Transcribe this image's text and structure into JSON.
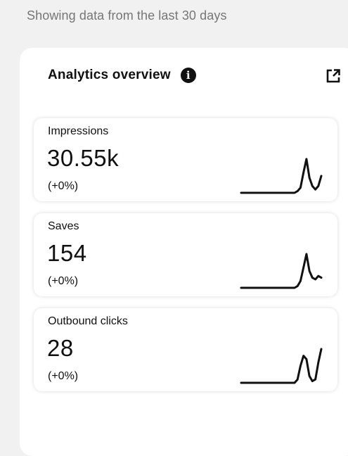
{
  "header": {
    "subtitle": "Showing data from the last 30 days"
  },
  "panel": {
    "title": "Analytics overview",
    "info_icon": "info-icon",
    "external_icon": "external-link-icon"
  },
  "metrics": [
    {
      "label": "Impressions",
      "value": "30.55k",
      "change": "(+0%)",
      "trend": [
        0,
        0,
        0,
        0,
        0,
        0,
        0,
        0,
        0,
        0,
        0,
        0,
        0,
        0,
        0,
        0,
        0,
        0,
        0,
        0.05,
        0.15,
        0.6,
        1,
        0.45,
        0.2,
        0.1,
        0.2,
        0.5
      ]
    },
    {
      "label": "Saves",
      "value": "154",
      "change": "(+0%)",
      "trend": [
        0,
        0,
        0,
        0,
        0,
        0,
        0,
        0,
        0,
        0,
        0,
        0,
        0,
        0,
        0,
        0,
        0,
        0,
        0,
        0.05,
        0.2,
        0.6,
        1,
        0.5,
        0.3,
        0.25,
        0.35,
        0.3
      ]
    },
    {
      "label": "Outbound clicks",
      "value": "28",
      "change": "(+0%)",
      "trend": [
        0,
        0,
        0,
        0,
        0,
        0,
        0,
        0,
        0,
        0,
        0,
        0,
        0,
        0,
        0,
        0,
        0,
        0,
        0,
        0.1,
        0.5,
        0.8,
        0.7,
        0.2,
        0.05,
        0.1,
        0.6,
        1
      ]
    }
  ],
  "colors": {
    "background": "#f1f1f1",
    "card": "#ffffff",
    "text": "#111111",
    "muted": "#767676"
  }
}
